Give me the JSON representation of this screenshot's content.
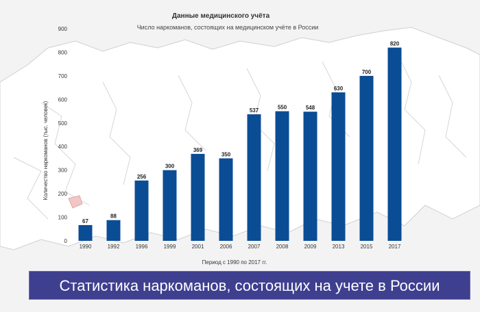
{
  "caption": "Статистика наркоманов, состоящих на учете в России",
  "colors": {
    "bar": "#0a4d95",
    "caption_bg": "#3f3f90",
    "background": "#f3f3f3"
  },
  "chart_data": {
    "type": "bar",
    "title": "Данные медицинского учёта",
    "subtitle": "Число наркоманов, состоящих на медицинском учёте в России",
    "xlabel": "Период с 1990 по 2017 гг.",
    "ylabel": "Количество наркоманов (тыс. человек)",
    "ylim": [
      0,
      900
    ],
    "yticks": [
      0,
      100,
      200,
      300,
      400,
      500,
      600,
      700,
      800,
      900
    ],
    "categories": [
      "1990",
      "1992",
      "1996",
      "1999",
      "2001",
      "2006",
      "2007",
      "2008",
      "2009",
      "2013",
      "2015",
      "2017"
    ],
    "values": [
      67,
      88,
      256,
      300,
      369,
      350,
      537,
      550,
      548,
      630,
      700,
      820
    ],
    "grid": false,
    "legend": "none"
  }
}
